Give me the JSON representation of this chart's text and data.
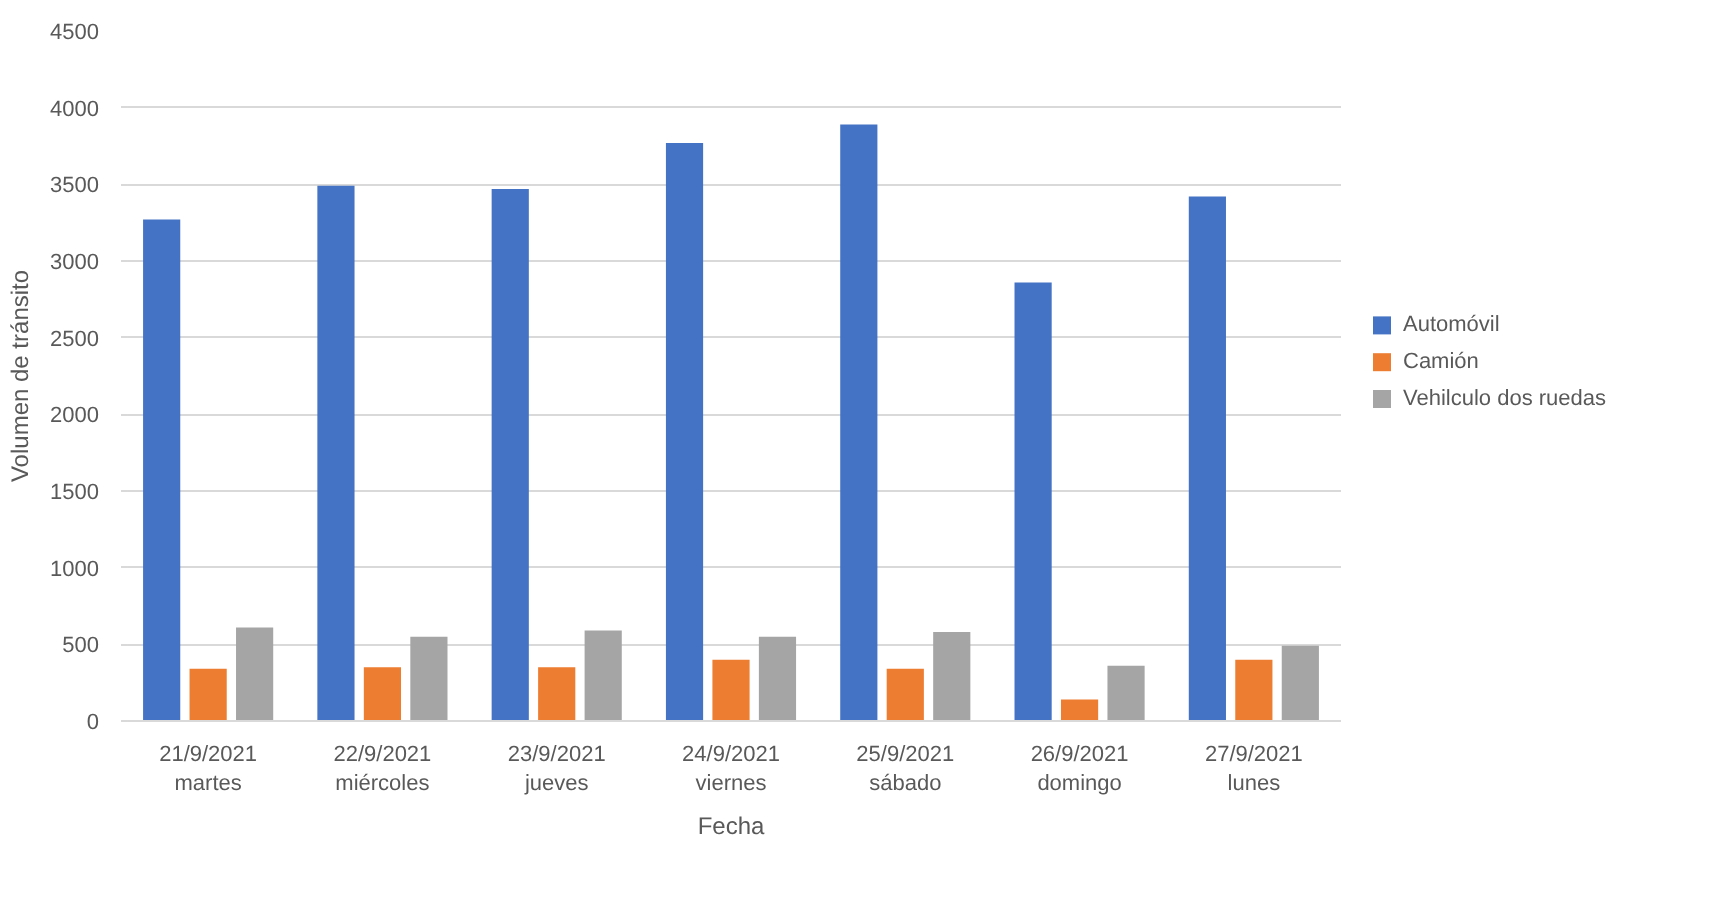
{
  "chart_data": {
    "type": "bar",
    "xlabel": "Fecha",
    "ylabel": "Volumen de tránsito",
    "categories": [
      "21/9/2021\nmartes",
      "22/9/2021\nmiércoles",
      "23/9/2021\njueves",
      "24/9/2021\nviernes",
      "25/9/2021\nsábado",
      "26/9/2021\ndomingo",
      "27/9/2021\nlunes"
    ],
    "series": [
      {
        "name": "Automóvil",
        "color": "#4472c4",
        "values": [
          3270,
          3490,
          3470,
          3770,
          3890,
          2860,
          3420
        ]
      },
      {
        "name": "Camión",
        "color": "#ed7d31",
        "values": [
          340,
          350,
          350,
          400,
          340,
          140,
          400
        ]
      },
      {
        "name": "Vehilculo dos ruedas",
        "color": "#a5a5a5",
        "values": [
          610,
          550,
          590,
          550,
          580,
          360,
          490
        ]
      }
    ],
    "ylim": [
      0,
      4500
    ],
    "yticks": [
      0,
      500,
      1000,
      1500,
      2000,
      2500,
      3000,
      3500,
      4000,
      4500
    ],
    "grid": "y",
    "legend": "right"
  }
}
